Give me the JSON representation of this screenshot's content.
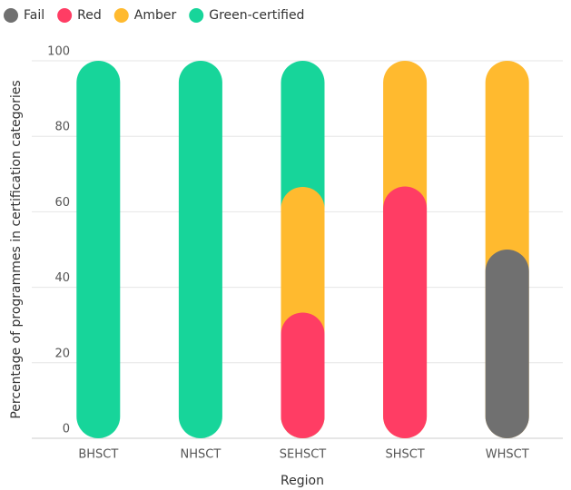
{
  "chart_data": {
    "type": "bar",
    "stacked": true,
    "x_label": "Region",
    "y_label": "Percentage of programmes in certification categories",
    "categories": [
      "BHSCT",
      "NHSCT",
      "SEHSCT",
      "SHSCT",
      "WHSCT"
    ],
    "series": [
      {
        "name": "Fail",
        "color": "#707070",
        "values": [
          0,
          0,
          0,
          0,
          50
        ]
      },
      {
        "name": "Red",
        "color": "#ff3d64",
        "values": [
          0,
          0,
          33.3,
          66.7,
          0
        ]
      },
      {
        "name": "Amber",
        "color": "#ffba2f",
        "values": [
          0,
          0,
          33.3,
          33.3,
          50
        ]
      },
      {
        "name": "Green-certified",
        "color": "#17d59a",
        "values": [
          100,
          100,
          33.4,
          0,
          0
        ]
      }
    ],
    "ylim": [
      0,
      100
    ],
    "yticks": [
      0,
      20,
      40,
      60,
      80,
      100
    ],
    "grid": true,
    "legend": "top-left"
  }
}
